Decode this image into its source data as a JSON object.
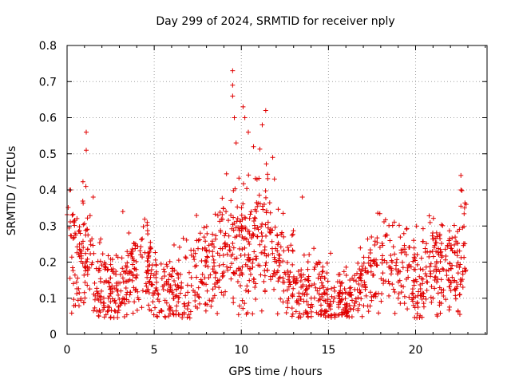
{
  "chart_data": {
    "type": "scatter",
    "title": "Day 299 of 2024, SRMTID for receiver nply",
    "xlabel": "GPS time / hours",
    "ylabel": "SRMTID / TECUs",
    "xlim": [
      0,
      24.1
    ],
    "ylim": [
      0,
      0.8
    ],
    "xticks": [
      0,
      5,
      10,
      15,
      20
    ],
    "xtick_labels": [
      "0",
      "5",
      "10",
      "15",
      "20"
    ],
    "yticks": [
      0,
      0.1,
      0.2,
      0.3,
      0.4,
      0.5,
      0.6,
      0.7,
      0.8
    ],
    "ytick_labels": [
      "0",
      "0.1",
      "0.2",
      "0.3",
      "0.4",
      "0.5",
      "0.6",
      "0.7",
      "0.8"
    ],
    "grid": true,
    "marker": "plus",
    "color": "#e00000",
    "data_extent_hours": [
      0.0,
      22.9
    ],
    "trend": {
      "x": [
        0.0,
        0.3,
        0.6,
        1.0,
        1.3,
        1.6,
        2.0,
        2.5,
        3.0,
        3.5,
        4.0,
        4.5,
        5.0,
        5.5,
        6.0,
        6.5,
        7.0,
        7.5,
        8.0,
        8.5,
        9.0,
        9.5,
        10.0,
        10.5,
        11.0,
        11.5,
        12.0,
        12.5,
        13.0,
        13.5,
        14.0,
        14.5,
        15.0,
        15.5,
        16.0,
        16.5,
        17.0,
        17.5,
        18.0,
        18.5,
        19.0,
        19.5,
        20.0,
        20.5,
        21.0,
        21.5,
        22.0,
        22.5,
        22.9
      ],
      "y": [
        0.3,
        0.22,
        0.2,
        0.22,
        0.24,
        0.12,
        0.14,
        0.12,
        0.1,
        0.16,
        0.2,
        0.18,
        0.12,
        0.12,
        0.12,
        0.13,
        0.15,
        0.18,
        0.2,
        0.22,
        0.25,
        0.28,
        0.26,
        0.24,
        0.26,
        0.25,
        0.2,
        0.17,
        0.14,
        0.12,
        0.12,
        0.12,
        0.11,
        0.1,
        0.09,
        0.1,
        0.14,
        0.18,
        0.2,
        0.21,
        0.18,
        0.17,
        0.16,
        0.17,
        0.18,
        0.19,
        0.2,
        0.2,
        0.24
      ]
    },
    "spikes": [
      {
        "x": 0.2,
        "y": 0.4
      },
      {
        "x": 1.1,
        "y": 0.56
      },
      {
        "x": 1.1,
        "y": 0.51
      },
      {
        "x": 1.5,
        "y": 0.38
      },
      {
        "x": 3.2,
        "y": 0.34
      },
      {
        "x": 4.6,
        "y": 0.31
      },
      {
        "x": 9.5,
        "y": 0.73
      },
      {
        "x": 9.5,
        "y": 0.69
      },
      {
        "x": 9.5,
        "y": 0.66
      },
      {
        "x": 9.6,
        "y": 0.6
      },
      {
        "x": 9.7,
        "y": 0.53
      },
      {
        "x": 10.1,
        "y": 0.63
      },
      {
        "x": 10.2,
        "y": 0.6
      },
      {
        "x": 10.4,
        "y": 0.56
      },
      {
        "x": 10.7,
        "y": 0.52
      },
      {
        "x": 11.2,
        "y": 0.58
      },
      {
        "x": 11.4,
        "y": 0.62
      },
      {
        "x": 11.8,
        "y": 0.49
      },
      {
        "x": 11.9,
        "y": 0.43
      },
      {
        "x": 13.5,
        "y": 0.38
      },
      {
        "x": 22.6,
        "y": 0.44
      },
      {
        "x": 22.6,
        "y": 0.4
      },
      {
        "x": 22.9,
        "y": 0.36
      }
    ]
  }
}
